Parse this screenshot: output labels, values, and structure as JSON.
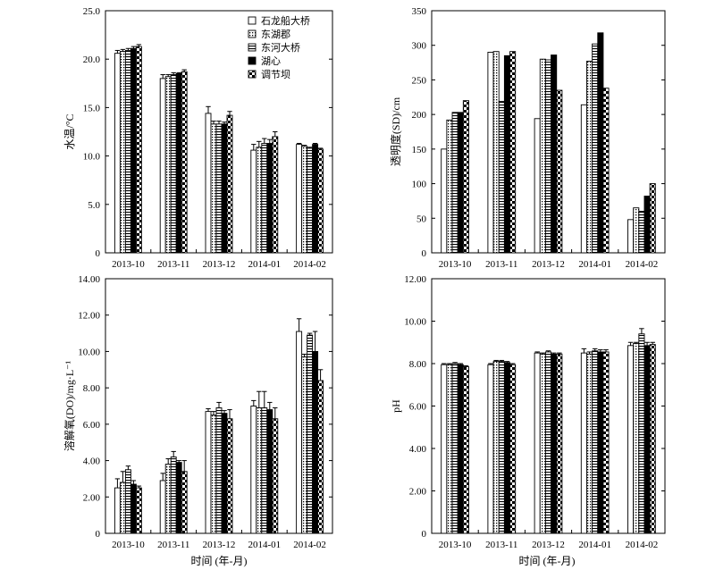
{
  "series": [
    {
      "name": "石龙船大桥",
      "pattern": "white"
    },
    {
      "name": "东湖郡",
      "pattern": "dots"
    },
    {
      "name": "东河大桥",
      "pattern": "hlines"
    },
    {
      "name": "湖心",
      "pattern": "black"
    },
    {
      "name": "调节坝",
      "pattern": "checker"
    }
  ],
  "xlabel": "时间 (年-月)",
  "chart_data": [
    {
      "type": "bar",
      "ylabel": "水温/°C",
      "ylim": [
        0,
        25
      ],
      "yticks": [
        0,
        5,
        10,
        15,
        20,
        25
      ],
      "ytick_labels": [
        "0",
        "5.0",
        "10.0",
        "15.0",
        "20.0",
        "25.0"
      ],
      "legend": "top-right",
      "categories": [
        "2013-10",
        "2013-11",
        "2013-12",
        "2014-01",
        "2014-02"
      ],
      "series": [
        {
          "name": "石龙船大桥",
          "values": [
            20.6,
            18.0,
            14.4,
            10.6,
            11.2
          ],
          "errors": [
            0.3,
            0.4,
            0.7,
            0.6,
            0.1
          ]
        },
        {
          "name": "东湖郡",
          "values": [
            20.8,
            18.2,
            13.3,
            10.9,
            11.0
          ],
          "errors": [
            0.2,
            0.2,
            0.3,
            0.6,
            0.1
          ]
        },
        {
          "name": "东河大桥",
          "values": [
            20.9,
            18.4,
            13.3,
            11.3,
            10.8
          ],
          "errors": [
            0.2,
            0.2,
            0.3,
            0.5,
            0.1
          ]
        },
        {
          "name": "湖心",
          "values": [
            21.1,
            18.5,
            13.3,
            11.3,
            11.2
          ],
          "errors": [
            0.2,
            0.1,
            0.2,
            0.4,
            0.1
          ]
        },
        {
          "name": "调节坝",
          "values": [
            21.3,
            18.7,
            14.2,
            12.0,
            10.7
          ],
          "errors": [
            0.2,
            0.2,
            0.4,
            0.5,
            0.1
          ]
        }
      ]
    },
    {
      "type": "bar",
      "ylabel": "透明度(SD)/cm",
      "ylim": [
        0,
        350
      ],
      "yticks": [
        0,
        50,
        100,
        150,
        200,
        250,
        300,
        350
      ],
      "ytick_labels": [
        "0",
        "50",
        "100",
        "150",
        "200",
        "250",
        "300",
        "350"
      ],
      "categories": [
        "2013-10",
        "2013-11",
        "2013-12",
        "2014-01",
        "2014-02"
      ],
      "series": [
        {
          "name": "石龙船大桥",
          "values": [
            150,
            290,
            194,
            214,
            48
          ]
        },
        {
          "name": "东湖郡",
          "values": [
            192,
            291,
            280,
            277,
            65
          ]
        },
        {
          "name": "东河大桥",
          "values": [
            203,
            219,
            279,
            302,
            60
          ]
        },
        {
          "name": "湖心",
          "values": [
            203,
            285,
            286,
            318,
            82
          ]
        },
        {
          "name": "调节坝",
          "values": [
            220,
            291,
            235,
            238,
            100
          ]
        }
      ]
    },
    {
      "type": "bar",
      "ylabel": "溶解氧(DO)/mg·L⁻¹",
      "ylim": [
        0,
        14
      ],
      "yticks": [
        0,
        2,
        4,
        6,
        8,
        10,
        12,
        14
      ],
      "ytick_labels": [
        "0",
        "2.00",
        "4.00",
        "6.00",
        "8.00",
        "10.00",
        "12.00",
        "14.00"
      ],
      "categories": [
        "2013-10",
        "2013-11",
        "2013-12",
        "2014-01",
        "2014-02"
      ],
      "series": [
        {
          "name": "石龙船大桥",
          "values": [
            2.5,
            2.9,
            6.7,
            7.0,
            11.1
          ],
          "errors": [
            0.5,
            0.4,
            0.15,
            0.3,
            0.7
          ]
        },
        {
          "name": "东湖郡",
          "values": [
            2.8,
            3.8,
            6.5,
            6.9,
            9.7
          ],
          "errors": [
            0.6,
            0.3,
            0.2,
            0.9,
            0.15
          ]
        },
        {
          "name": "东河大桥",
          "values": [
            3.5,
            4.2,
            6.9,
            6.9,
            10.9
          ],
          "errors": [
            0.2,
            0.3,
            0.3,
            0.9,
            0.1
          ]
        },
        {
          "name": "湖心",
          "values": [
            2.7,
            3.9,
            6.6,
            6.8,
            10.0
          ],
          "errors": [
            0.2,
            0.1,
            0.15,
            0.4,
            1.1
          ]
        },
        {
          "name": "调节坝",
          "values": [
            2.5,
            3.4,
            6.3,
            6.3,
            8.4
          ],
          "errors": [
            0.1,
            0.6,
            0.5,
            0.6,
            0.6
          ]
        }
      ]
    },
    {
      "type": "bar",
      "ylabel": "pH",
      "ylim": [
        0,
        12
      ],
      "yticks": [
        0,
        2,
        4,
        6,
        8,
        10,
        12
      ],
      "ytick_labels": [
        "0",
        "2.00",
        "4.00",
        "6.00",
        "8.00",
        "10.00",
        "12.00"
      ],
      "categories": [
        "2013-10",
        "2013-11",
        "2013-12",
        "2014-01",
        "2014-02"
      ],
      "series": [
        {
          "name": "石龙船大桥",
          "values": [
            7.95,
            7.95,
            8.5,
            8.5,
            8.85
          ],
          "errors": [
            0.05,
            0.05,
            0.05,
            0.2,
            0.15
          ]
        },
        {
          "name": "东湖郡",
          "values": [
            7.95,
            8.1,
            8.45,
            8.45,
            8.95
          ],
          "errors": [
            0.05,
            0.05,
            0.05,
            0.1,
            0.05
          ]
        },
        {
          "name": "东河大桥",
          "values": [
            8.0,
            8.1,
            8.55,
            8.6,
            9.4
          ],
          "errors": [
            0.05,
            0.05,
            0.05,
            0.1,
            0.25
          ]
        },
        {
          "name": "湖心",
          "values": [
            7.95,
            8.05,
            8.45,
            8.55,
            8.85
          ],
          "errors": [
            0.05,
            0.05,
            0.05,
            0.1,
            0.15
          ]
        },
        {
          "name": "调节坝",
          "values": [
            7.85,
            7.95,
            8.45,
            8.55,
            8.9
          ],
          "errors": [
            0.05,
            0.05,
            0.05,
            0.1,
            0.1
          ]
        }
      ]
    }
  ]
}
